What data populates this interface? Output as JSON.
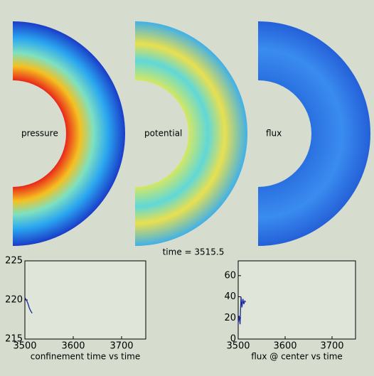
{
  "panels": [
    {
      "label": "pressure"
    },
    {
      "label": "potential"
    },
    {
      "label": "flux"
    }
  ],
  "time_label": "time = 3515.5",
  "chart_data": [
    {
      "type": "line",
      "xlabel": "confinement time vs time",
      "x": [
        3500,
        3503,
        3506,
        3509,
        3512,
        3515
      ],
      "series": [
        {
          "color": "#1a2a9a",
          "values": [
            220.3,
            220.0,
            219.6,
            219.0,
            218.6,
            218.3
          ]
        }
      ],
      "xlim": [
        3500,
        3750
      ],
      "xticks": [
        3500,
        3600,
        3700
      ],
      "ylim": [
        215,
        225
      ],
      "yticks": [
        215,
        220,
        225
      ]
    },
    {
      "type": "line",
      "xlabel": "flux @ center vs time",
      "x": [
        3500,
        3502,
        3504,
        3506,
        3508,
        3510,
        3512,
        3514,
        3516
      ],
      "series": [
        {
          "color": "#1a2a9a",
          "values": [
            15,
            22,
            14,
            40,
            30,
            38,
            33,
            36,
            35
          ]
        }
      ],
      "xlim": [
        3500,
        3750
      ],
      "xticks": [
        3500,
        3600,
        3700
      ],
      "ylim": [
        0,
        74
      ],
      "yticks": [
        0,
        20,
        40,
        60
      ]
    }
  ]
}
